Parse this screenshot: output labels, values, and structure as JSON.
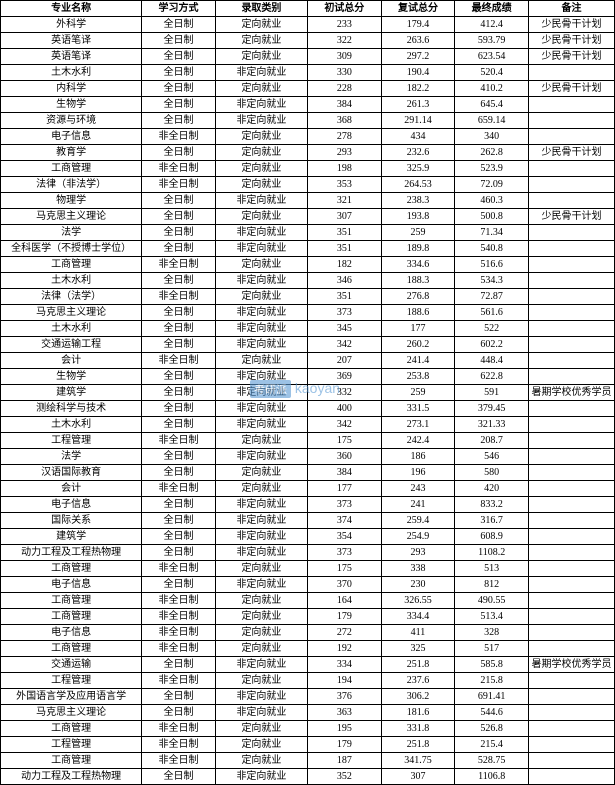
{
  "table": {
    "columns": [
      "专业名称",
      "学习方式",
      "录取类别",
      "初试总分",
      "复试总分",
      "最终成绩",
      "备注"
    ],
    "column_widths_pct": [
      23,
      12,
      15,
      12,
      12,
      12,
      14
    ],
    "header_fontsize": 10,
    "cell_fontsize": 10,
    "border_color": "#000000",
    "background_color": "#ffffff",
    "text_color": "#000000",
    "rows": [
      [
        "外科学",
        "全日制",
        "定向就业",
        "233",
        "179.4",
        "412.4",
        "少民骨干计划"
      ],
      [
        "英语笔译",
        "全日制",
        "定向就业",
        "322",
        "263.6",
        "593.79",
        "少民骨干计划"
      ],
      [
        "英语笔译",
        "全日制",
        "定向就业",
        "309",
        "297.2",
        "623.54",
        "少民骨干计划"
      ],
      [
        "土木水利",
        "全日制",
        "非定向就业",
        "330",
        "190.4",
        "520.4",
        ""
      ],
      [
        "内科学",
        "全日制",
        "定向就业",
        "228",
        "182.2",
        "410.2",
        "少民骨干计划"
      ],
      [
        "生物学",
        "全日制",
        "非定向就业",
        "384",
        "261.3",
        "645.4",
        ""
      ],
      [
        "资源与环境",
        "全日制",
        "非定向就业",
        "368",
        "291.14",
        "659.14",
        ""
      ],
      [
        "电子信息",
        "非全日制",
        "定向就业",
        "278",
        "434",
        "340",
        ""
      ],
      [
        "教育学",
        "全日制",
        "定向就业",
        "293",
        "232.6",
        "262.8",
        "少民骨干计划"
      ],
      [
        "工商管理",
        "非全日制",
        "定向就业",
        "198",
        "325.9",
        "523.9",
        ""
      ],
      [
        "法律（非法学）",
        "非全日制",
        "定向就业",
        "353",
        "264.53",
        "72.09",
        ""
      ],
      [
        "物理学",
        "全日制",
        "非定向就业",
        "321",
        "238.3",
        "460.3",
        ""
      ],
      [
        "马克思主义理论",
        "全日制",
        "定向就业",
        "307",
        "193.8",
        "500.8",
        "少民骨干计划"
      ],
      [
        "法学",
        "全日制",
        "非定向就业",
        "351",
        "259",
        "71.34",
        ""
      ],
      [
        "全科医学（不授博士学位）",
        "全日制",
        "非定向就业",
        "351",
        "189.8",
        "540.8",
        ""
      ],
      [
        "工商管理",
        "非全日制",
        "定向就业",
        "182",
        "334.6",
        "516.6",
        ""
      ],
      [
        "土木水利",
        "全日制",
        "非定向就业",
        "346",
        "188.3",
        "534.3",
        ""
      ],
      [
        "法律（法学）",
        "非全日制",
        "定向就业",
        "351",
        "276.8",
        "72.87",
        ""
      ],
      [
        "马克思主义理论",
        "全日制",
        "非定向就业",
        "373",
        "188.6",
        "561.6",
        ""
      ],
      [
        "土木水利",
        "全日制",
        "非定向就业",
        "345",
        "177",
        "522",
        ""
      ],
      [
        "交通运输工程",
        "全日制",
        "非定向就业",
        "342",
        "260.2",
        "602.2",
        ""
      ],
      [
        "会计",
        "非全日制",
        "定向就业",
        "207",
        "241.4",
        "448.4",
        ""
      ],
      [
        "生物学",
        "全日制",
        "非定向就业",
        "369",
        "253.8",
        "622.8",
        ""
      ],
      [
        "建筑学",
        "全日制",
        "非定向就业",
        "332",
        "259",
        "591",
        "暑期学校优秀学员"
      ],
      [
        "测绘科学与技术",
        "全日制",
        "非定向就业",
        "400",
        "331.5",
        "379.45",
        ""
      ],
      [
        "土木水利",
        "全日制",
        "非定向就业",
        "342",
        "273.1",
        "321.33",
        ""
      ],
      [
        "工程管理",
        "非全日制",
        "定向就业",
        "175",
        "242.4",
        "208.7",
        ""
      ],
      [
        "法学",
        "全日制",
        "非定向就业",
        "360",
        "186",
        "546",
        ""
      ],
      [
        "汉语国际教育",
        "全日制",
        "定向就业",
        "384",
        "196",
        "580",
        ""
      ],
      [
        "会计",
        "非全日制",
        "定向就业",
        "177",
        "243",
        "420",
        ""
      ],
      [
        "电子信息",
        "全日制",
        "非定向就业",
        "373",
        "241",
        "833.2",
        ""
      ],
      [
        "国际关系",
        "全日制",
        "非定向就业",
        "374",
        "259.4",
        "316.7",
        ""
      ],
      [
        "建筑学",
        "全日制",
        "非定向就业",
        "354",
        "254.9",
        "608.9",
        ""
      ],
      [
        "动力工程及工程热物理",
        "全日制",
        "非定向就业",
        "373",
        "293",
        "1108.2",
        ""
      ],
      [
        "工商管理",
        "非全日制",
        "定向就业",
        "175",
        "338",
        "513",
        ""
      ],
      [
        "电子信息",
        "全日制",
        "非定向就业",
        "370",
        "230",
        "812",
        ""
      ],
      [
        "工商管理",
        "非全日制",
        "定向就业",
        "164",
        "326.55",
        "490.55",
        ""
      ],
      [
        "工商管理",
        "非全日制",
        "定向就业",
        "179",
        "334.4",
        "513.4",
        ""
      ],
      [
        "电子信息",
        "非全日制",
        "定向就业",
        "272",
        "411",
        "328",
        ""
      ],
      [
        "工商管理",
        "非全日制",
        "定向就业",
        "192",
        "325",
        "517",
        ""
      ],
      [
        "交通运输",
        "全日制",
        "非定向就业",
        "334",
        "251.8",
        "585.8",
        "暑期学校优秀学员"
      ],
      [
        "工程管理",
        "非全日制",
        "定向就业",
        "194",
        "237.6",
        "215.8",
        ""
      ],
      [
        "外国语言学及应用语言学",
        "全日制",
        "非定向就业",
        "376",
        "306.2",
        "691.41",
        ""
      ],
      [
        "马克思主义理论",
        "全日制",
        "非定向就业",
        "363",
        "181.6",
        "544.6",
        ""
      ],
      [
        "工商管理",
        "非全日制",
        "定向就业",
        "195",
        "331.8",
        "526.8",
        ""
      ],
      [
        "工程管理",
        "非全日制",
        "定向就业",
        "179",
        "251.8",
        "215.4",
        ""
      ],
      [
        "工商管理",
        "非全日制",
        "定向就业",
        "187",
        "341.75",
        "528.75",
        ""
      ],
      [
        "动力工程及工程热物理",
        "全日制",
        "非定向就业",
        "352",
        "307",
        "1106.8",
        ""
      ]
    ]
  },
  "watermark": {
    "brand_text": "考研派",
    "url_text": "kaoyan",
    "color": "#5b9bd5",
    "opacity": 0.6
  }
}
